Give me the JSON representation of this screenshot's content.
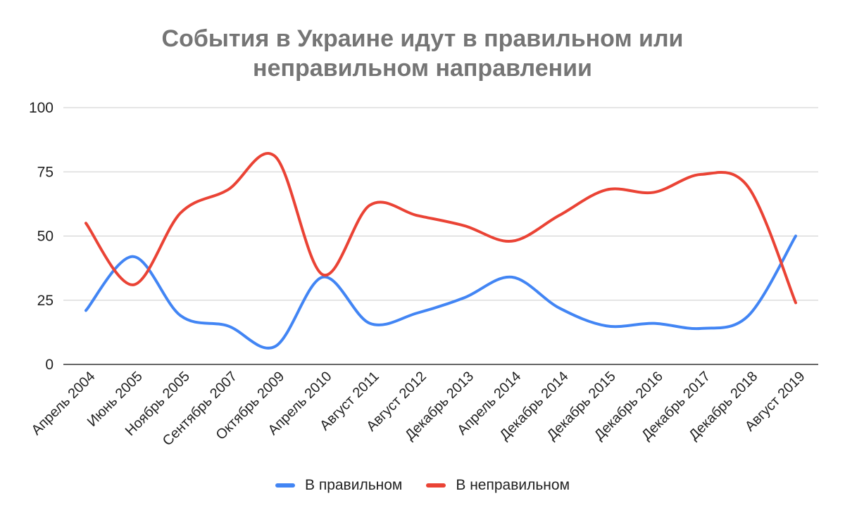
{
  "chart_data": {
    "type": "line",
    "title": [
      "События в Украине идут в правильном или",
      "неправильном направлении"
    ],
    "categories": [
      "Апрель 2004",
      "Июнь 2005",
      "Ноябрь 2005",
      "Сентябрь 2007",
      "Октябрь 2009",
      "Апрель 2010",
      "Август  2011",
      "Август 2012",
      "Декабрь 2013",
      "Апрель 2014",
      "Декабрь 2014",
      "Декабрь 2015",
      "Декабрь 2016",
      "Декабрь 2017",
      "Декабрь 2018",
      "Август  2019"
    ],
    "series": [
      {
        "name": "В правильном",
        "color": "#4285f4",
        "values": [
          21,
          42,
          19,
          15,
          7,
          34,
          16,
          20,
          26,
          34,
          22,
          15,
          16,
          14,
          19,
          50
        ]
      },
      {
        "name": "В неправильном",
        "color": "#ea4335",
        "values": [
          55,
          31,
          59,
          68,
          81,
          35,
          62,
          58,
          54,
          48,
          58,
          68,
          67,
          74,
          69,
          24
        ]
      }
    ],
    "ylim": [
      0,
      100
    ],
    "yticks": [
      0,
      25,
      50,
      75,
      100
    ],
    "grid": true,
    "legend": "bottom",
    "xlabel": "",
    "ylabel": ""
  }
}
